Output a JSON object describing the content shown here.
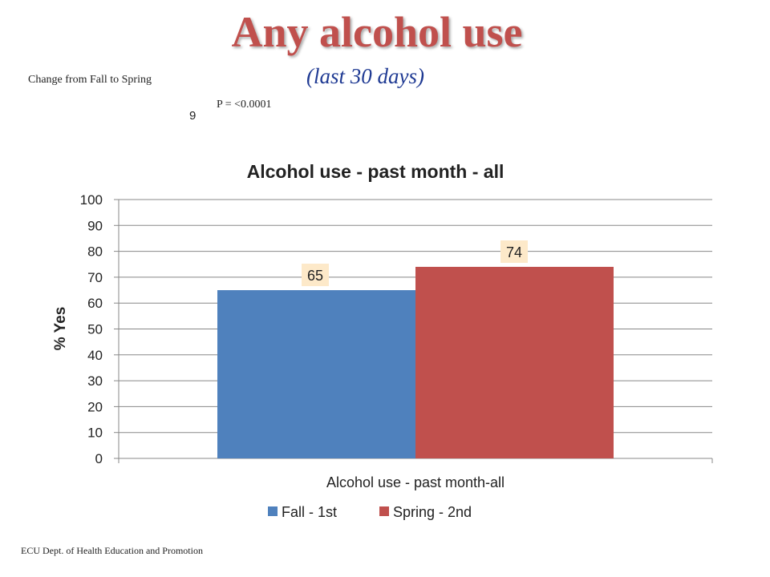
{
  "slide": {
    "title": "Any alcohol use",
    "subtitle": "(last 30 days)",
    "change_note": "Change  from Fall to Spring",
    "p_value": "P = <0.0001",
    "slide_number": "9",
    "footer": "ECU Dept. of Health Education and Promotion"
  },
  "colors": {
    "title": "#c0504d",
    "subtitle": "#1f3a93",
    "series_fall": "#4f81bd",
    "series_spring": "#c0504d",
    "data_label_bg": "#fde9c9",
    "gridline": "#888888"
  },
  "chart_data": {
    "type": "bar",
    "title": "Alcohol use - past month - all",
    "xlabel": "Alcohol use - past month-all",
    "ylabel": "% Yes",
    "ylim": [
      0,
      100
    ],
    "yticks": [
      "0",
      "10",
      "20",
      "30",
      "40",
      "50",
      "60",
      "70",
      "80",
      "90",
      "100"
    ],
    "categories": [
      "Alcohol use - past month-all"
    ],
    "series": [
      {
        "name": "Fall - 1st",
        "values": [
          65
        ],
        "label": "65"
      },
      {
        "name": "Spring - 2nd",
        "values": [
          74
        ],
        "label": "74"
      }
    ],
    "grid": true,
    "legend": "bottom"
  }
}
